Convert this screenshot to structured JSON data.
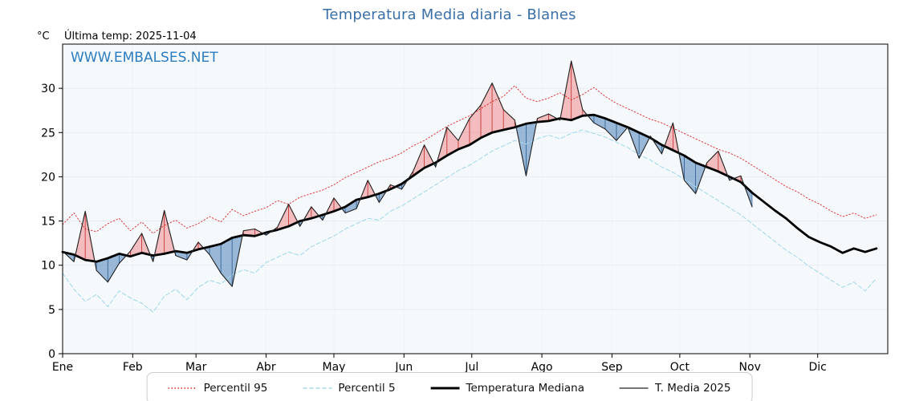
{
  "title": "Temperatura Media diaria - Blanes",
  "y_unit": "°C",
  "last_temp_label": "Última temp: 2025-11-04",
  "watermark": "WWW.EMBALSES.NET",
  "colors": {
    "title": "#3a6fa8",
    "watermark": "#2b7cc0",
    "p95_line": "#dd2222",
    "p5_line": "#a6d9ea",
    "median_line": "#000000",
    "t2025_line": "#222222",
    "fill_above": "#f08080",
    "fill_above_edge": "#c03030",
    "fill_below": "#5b8cbe",
    "fill_below_edge": "#2f5e8f",
    "plot_bg": "#f6f9fc",
    "grid": "#e3ebf2"
  },
  "chart_data": {
    "type": "line",
    "title": "Temperatura Media diaria - Blanes",
    "xlabel": "",
    "ylabel": "°C",
    "ylim": [
      0,
      35
    ],
    "yticks": [
      0,
      5,
      10,
      15,
      20,
      25,
      30
    ],
    "xlim_days": [
      0,
      365
    ],
    "grid": true,
    "legend_position": "bottom",
    "months": [
      "Ene",
      "Feb",
      "Mar",
      "Abr",
      "May",
      "Jun",
      "Jul",
      "Ago",
      "Sep",
      "Oct",
      "Nov",
      "Dic"
    ],
    "month_start_days": [
      0,
      31,
      59,
      90,
      120,
      151,
      181,
      212,
      243,
      273,
      304,
      334
    ],
    "x_days": [
      0,
      5,
      10,
      15,
      20,
      25,
      30,
      35,
      40,
      45,
      50,
      55,
      60,
      65,
      70,
      75,
      80,
      85,
      90,
      95,
      100,
      105,
      110,
      115,
      120,
      125,
      130,
      135,
      140,
      145,
      150,
      155,
      160,
      165,
      170,
      175,
      180,
      185,
      190,
      195,
      200,
      205,
      210,
      215,
      220,
      225,
      230,
      235,
      240,
      245,
      250,
      255,
      260,
      265,
      270,
      275,
      280,
      285,
      290,
      295,
      300,
      305,
      310,
      315,
      320,
      325,
      330,
      335,
      340,
      345,
      350,
      355,
      360
    ],
    "series": [
      {
        "name": "Percentil 95",
        "style": "dotted",
        "color": "#dd2222",
        "values": [
          14.6,
          15.9,
          14.1,
          13.8,
          14.7,
          15.3,
          13.9,
          14.9,
          13.6,
          14.5,
          15.1,
          14.2,
          14.7,
          15.5,
          14.9,
          16.3,
          15.6,
          16.1,
          16.5,
          17.3,
          16.9,
          17.7,
          18.1,
          18.5,
          19.1,
          19.9,
          20.5,
          21.1,
          21.7,
          22.1,
          22.7,
          23.5,
          24.1,
          24.9,
          25.7,
          26.3,
          26.9,
          27.7,
          28.5,
          29.1,
          30.3,
          28.9,
          28.5,
          28.9,
          29.5,
          28.7,
          29.3,
          30.1,
          29.1,
          28.3,
          27.7,
          27.1,
          26.5,
          26.1,
          25.5,
          24.9,
          24.3,
          23.7,
          23.1,
          22.7,
          22.1,
          21.3,
          20.5,
          19.7,
          18.9,
          18.3,
          17.5,
          16.9,
          16.1,
          15.5,
          15.9,
          15.3,
          15.7
        ]
      },
      {
        "name": "Percentil 5",
        "style": "dashed",
        "color": "#a6d9ea",
        "values": [
          9.1,
          7.3,
          5.9,
          6.7,
          5.3,
          7.1,
          6.3,
          5.7,
          4.7,
          6.5,
          7.3,
          6.1,
          7.5,
          8.3,
          7.9,
          8.9,
          9.5,
          9.1,
          10.3,
          10.9,
          11.5,
          11.1,
          12.1,
          12.7,
          13.3,
          14.1,
          14.7,
          15.3,
          15.1,
          16.1,
          16.7,
          17.5,
          18.3,
          19.1,
          19.9,
          20.7,
          21.3,
          22.1,
          22.9,
          23.5,
          24.1,
          23.7,
          24.3,
          24.7,
          24.3,
          24.9,
          25.3,
          24.9,
          24.5,
          23.9,
          23.3,
          22.5,
          21.9,
          21.1,
          20.5,
          19.7,
          18.9,
          18.1,
          17.3,
          16.5,
          15.7,
          14.7,
          13.7,
          12.7,
          11.7,
          10.9,
          9.9,
          9.1,
          8.3,
          7.5,
          8.1,
          7.1,
          8.5
        ]
      },
      {
        "name": "Temperatura Mediana",
        "style": "solid-thick",
        "color": "#000000",
        "values": [
          11.5,
          11.2,
          10.6,
          10.4,
          10.8,
          11.3,
          11.0,
          11.4,
          11.1,
          11.3,
          11.6,
          11.4,
          11.8,
          12.1,
          12.4,
          13.1,
          13.4,
          13.3,
          13.7,
          14.0,
          14.4,
          15.0,
          15.3,
          15.7,
          16.1,
          16.6,
          17.4,
          17.7,
          18.1,
          18.6,
          19.2,
          20.1,
          21.0,
          21.6,
          22.4,
          23.1,
          23.6,
          24.4,
          25.0,
          25.3,
          25.6,
          26.0,
          26.2,
          26.3,
          26.6,
          26.4,
          26.9,
          27.0,
          26.6,
          26.1,
          25.6,
          25.0,
          24.4,
          23.6,
          23.0,
          22.4,
          21.6,
          21.1,
          20.6,
          20.0,
          19.4,
          18.2,
          17.2,
          16.2,
          15.3,
          14.2,
          13.2,
          12.6,
          12.1,
          11.4,
          11.9,
          11.5,
          11.9
        ]
      },
      {
        "name": "T. Media 2025",
        "style": "solid-thin",
        "color": "#222222",
        "values": [
          11.6,
          10.4,
          16.1,
          9.4,
          8.1,
          10.2,
          11.6,
          13.6,
          10.4,
          16.2,
          11.1,
          10.6,
          12.6,
          11.2,
          9.1,
          7.6,
          13.9,
          14.1,
          13.4,
          14.3,
          16.9,
          14.4,
          16.6,
          15.1,
          17.6,
          15.9,
          16.4,
          19.6,
          17.1,
          19.1,
          18.6,
          20.6,
          23.6,
          21.1,
          25.6,
          24.1,
          26.6,
          28.1,
          30.6,
          27.6,
          26.4,
          20.1,
          26.6,
          27.1,
          26.4,
          33.1,
          27.6,
          26.1,
          25.4,
          24.1,
          25.6,
          22.1,
          24.6,
          22.6,
          26.1,
          19.6,
          18.1,
          21.6,
          22.9,
          19.6,
          20.1,
          16.6
        ]
      }
    ],
    "fills": {
      "above_median_color": "#f08080",
      "below_median_color": "#5b8cbe",
      "note": "area between T. Media 2025 and Temperatura Mediana"
    }
  },
  "legend": {
    "items": [
      {
        "label": "Percentil 95"
      },
      {
        "label": "Percentil 5"
      },
      {
        "label": "Temperatura Mediana"
      },
      {
        "label": "T. Media 2025"
      }
    ]
  }
}
